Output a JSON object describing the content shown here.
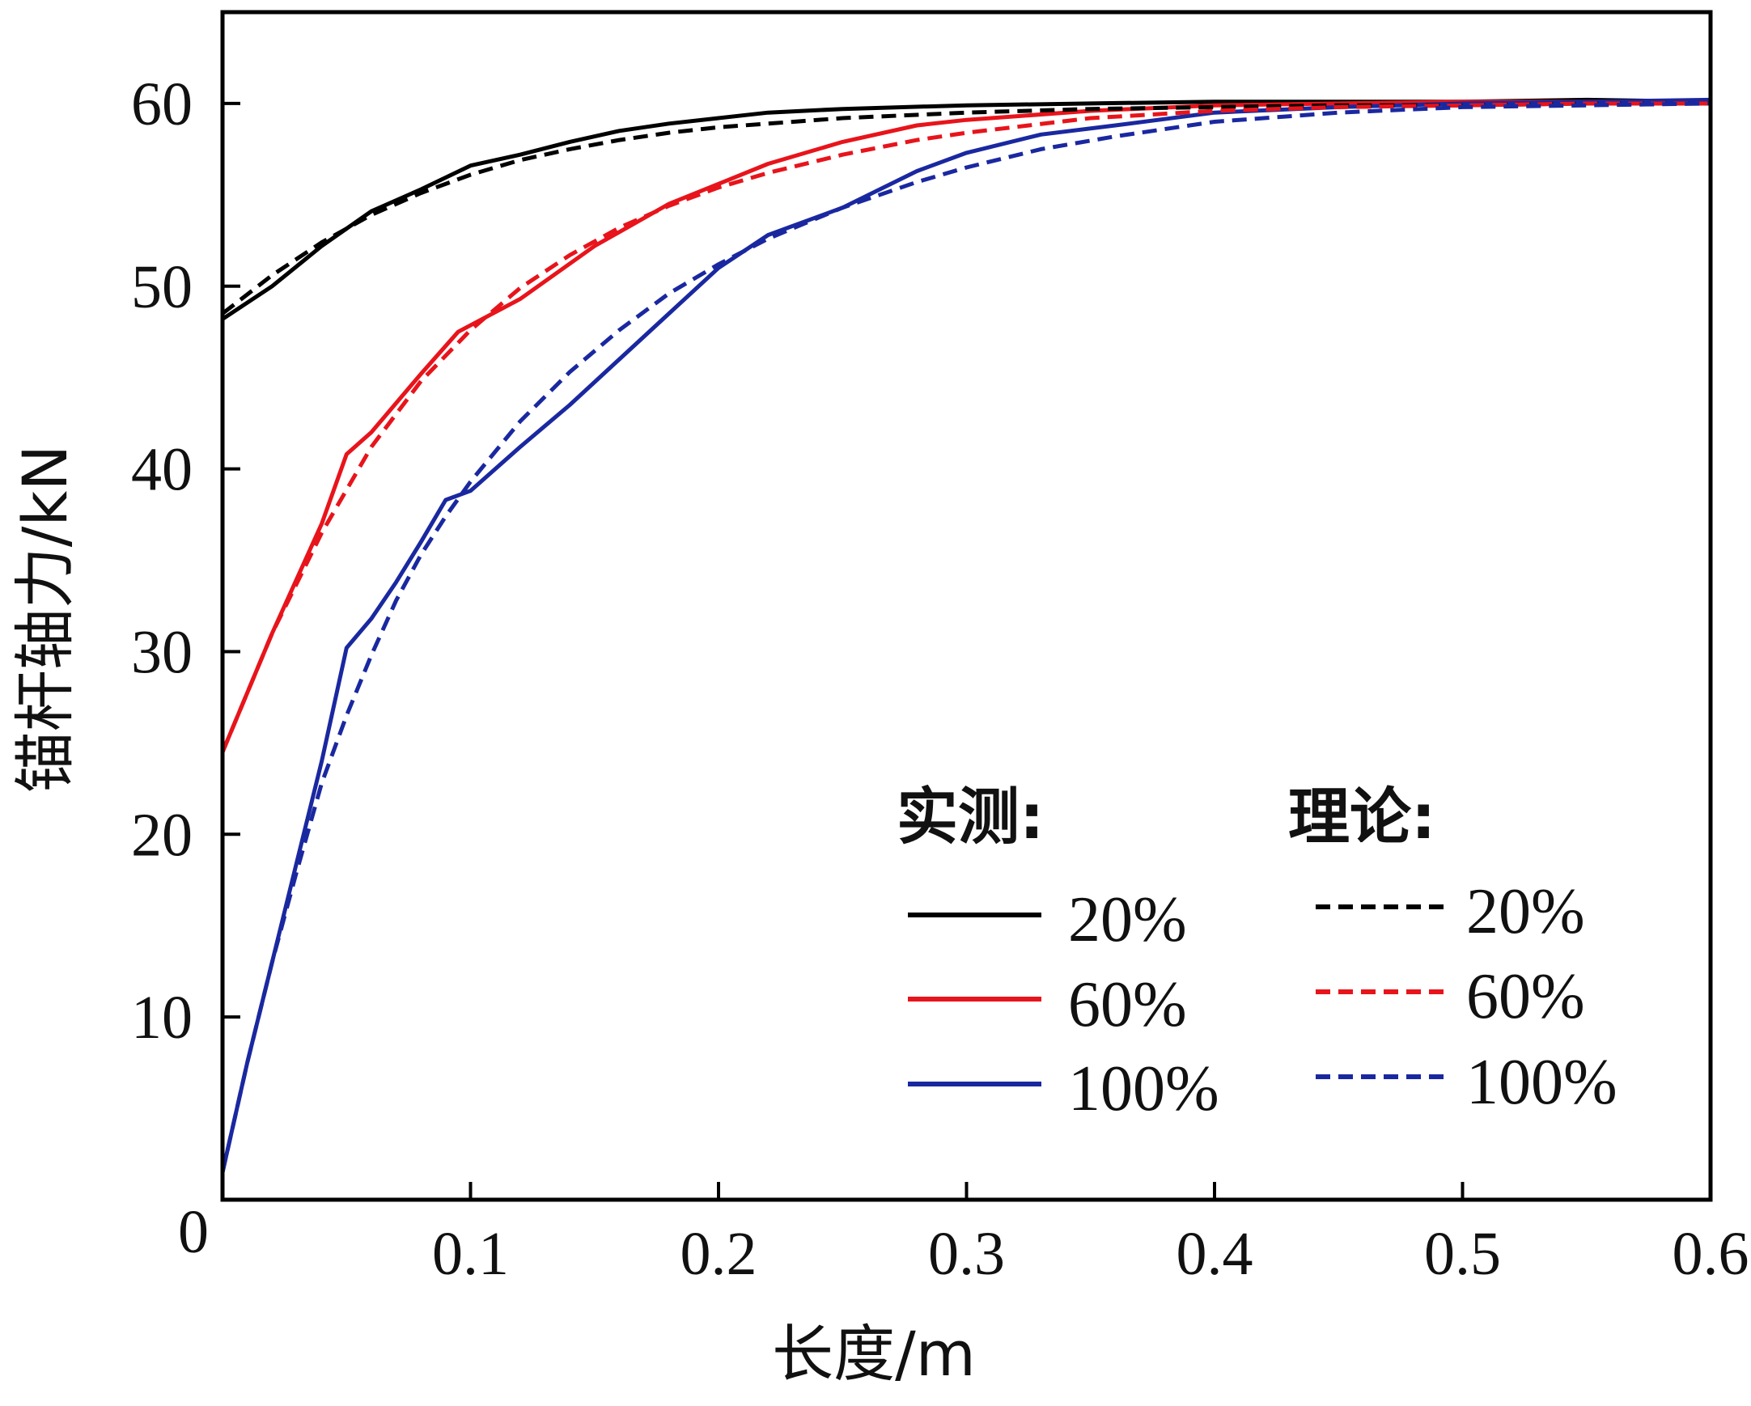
{
  "chart_data": {
    "type": "line",
    "xlabel": "长度/m",
    "ylabel": "锚杆轴力/kN",
    "xlim": [
      0,
      0.6
    ],
    "ylim": [
      0,
      65
    ],
    "x_ticks": [
      "0.1",
      "0.2",
      "0.3",
      "0.4",
      "0.5",
      "0.6"
    ],
    "x_tick_values": [
      0.1,
      0.2,
      0.3,
      0.4,
      0.5,
      0.6
    ],
    "y_ticks": [
      "0",
      "10",
      "20",
      "30",
      "40",
      "50",
      "60"
    ],
    "y_tick_values": [
      0,
      10,
      20,
      30,
      40,
      50,
      60
    ],
    "grid": false,
    "legend": {
      "placement": "bottom-right",
      "measured_title": "实测:",
      "theory_title": "理论:",
      "measured_labels": [
        "20%",
        "60%",
        "100%"
      ],
      "theory_labels": [
        "20%",
        "60%",
        "100%"
      ]
    },
    "colors": {
      "20%": "#000000",
      "60%": "#e8141b",
      "100%": "#1a28a0"
    },
    "series": [
      {
        "group": "实测",
        "label": "20%",
        "style": "solid",
        "color": "#000000",
        "x": [
          0,
          0.02,
          0.04,
          0.06,
          0.08,
          0.1,
          0.12,
          0.14,
          0.16,
          0.18,
          0.2,
          0.22,
          0.25,
          0.3,
          0.35,
          0.4,
          0.45,
          0.5,
          0.55,
          0.6
        ],
        "y": [
          48.2,
          50.0,
          52.2,
          54.1,
          55.3,
          56.6,
          57.2,
          57.9,
          58.5,
          58.9,
          59.2,
          59.5,
          59.7,
          59.9,
          60.0,
          60.1,
          60.1,
          60.1,
          60.2,
          60.1
        ]
      },
      {
        "group": "实测",
        "label": "60%",
        "style": "solid",
        "color": "#e8141b",
        "x": [
          0,
          0.02,
          0.04,
          0.05,
          0.06,
          0.08,
          0.095,
          0.12,
          0.15,
          0.18,
          0.2,
          0.22,
          0.25,
          0.28,
          0.3,
          0.35,
          0.4,
          0.45,
          0.5,
          0.55,
          0.6
        ],
        "y": [
          24.5,
          31.0,
          37.0,
          40.8,
          42.0,
          45.2,
          47.5,
          49.3,
          52.2,
          54.5,
          55.6,
          56.7,
          57.9,
          58.8,
          59.1,
          59.6,
          59.9,
          60.0,
          60.1,
          60.1,
          60.1
        ]
      },
      {
        "group": "实测",
        "label": "100%",
        "style": "solid",
        "color": "#1a28a0",
        "x": [
          0,
          0.01,
          0.02,
          0.03,
          0.04,
          0.05,
          0.06,
          0.07,
          0.08,
          0.09,
          0.1,
          0.12,
          0.14,
          0.16,
          0.18,
          0.2,
          0.22,
          0.25,
          0.28,
          0.3,
          0.33,
          0.36,
          0.4,
          0.45,
          0.5,
          0.55,
          0.6
        ],
        "y": [
          1.5,
          7.5,
          13.0,
          18.5,
          24.0,
          30.2,
          31.8,
          33.8,
          36.0,
          38.3,
          38.8,
          41.2,
          43.5,
          46.0,
          48.5,
          51.0,
          52.8,
          54.3,
          56.3,
          57.3,
          58.3,
          58.8,
          59.5,
          59.8,
          60.0,
          60.1,
          60.2
        ]
      },
      {
        "group": "理论",
        "label": "20%",
        "style": "dashed",
        "color": "#000000",
        "x": [
          0,
          0.02,
          0.04,
          0.06,
          0.08,
          0.1,
          0.12,
          0.14,
          0.16,
          0.18,
          0.2,
          0.22,
          0.25,
          0.3,
          0.35,
          0.4,
          0.45,
          0.5,
          0.55,
          0.6
        ],
        "y": [
          48.5,
          50.6,
          52.4,
          53.9,
          55.1,
          56.1,
          56.9,
          57.5,
          58.0,
          58.4,
          58.7,
          58.9,
          59.2,
          59.5,
          59.7,
          59.8,
          59.9,
          59.9,
          60.0,
          60.0
        ]
      },
      {
        "group": "理论",
        "label": "60%",
        "style": "dashed",
        "color": "#e8141b",
        "x": [
          0,
          0.02,
          0.04,
          0.06,
          0.08,
          0.1,
          0.12,
          0.14,
          0.16,
          0.18,
          0.2,
          0.22,
          0.25,
          0.28,
          0.3,
          0.35,
          0.4,
          0.45,
          0.5,
          0.55,
          0.6
        ],
        "y": [
          24.5,
          31.0,
          36.5,
          41.2,
          44.8,
          47.6,
          49.9,
          51.7,
          53.2,
          54.4,
          55.4,
          56.2,
          57.2,
          58.0,
          58.4,
          59.2,
          59.6,
          59.8,
          59.9,
          60.0,
          60.0
        ]
      },
      {
        "group": "理论",
        "label": "100%",
        "style": "dashed",
        "color": "#1a28a0",
        "x": [
          0,
          0.01,
          0.02,
          0.03,
          0.04,
          0.05,
          0.06,
          0.07,
          0.08,
          0.09,
          0.1,
          0.12,
          0.14,
          0.16,
          0.18,
          0.2,
          0.22,
          0.25,
          0.28,
          0.3,
          0.33,
          0.36,
          0.4,
          0.45,
          0.5,
          0.55,
          0.6
        ],
        "y": [
          1.5,
          7.5,
          13.0,
          18.0,
          22.8,
          26.5,
          29.8,
          32.8,
          35.3,
          37.4,
          39.3,
          42.6,
          45.3,
          47.6,
          49.6,
          51.2,
          52.6,
          54.3,
          55.7,
          56.5,
          57.5,
          58.2,
          59.0,
          59.5,
          59.8,
          59.9,
          60.0
        ]
      }
    ]
  }
}
